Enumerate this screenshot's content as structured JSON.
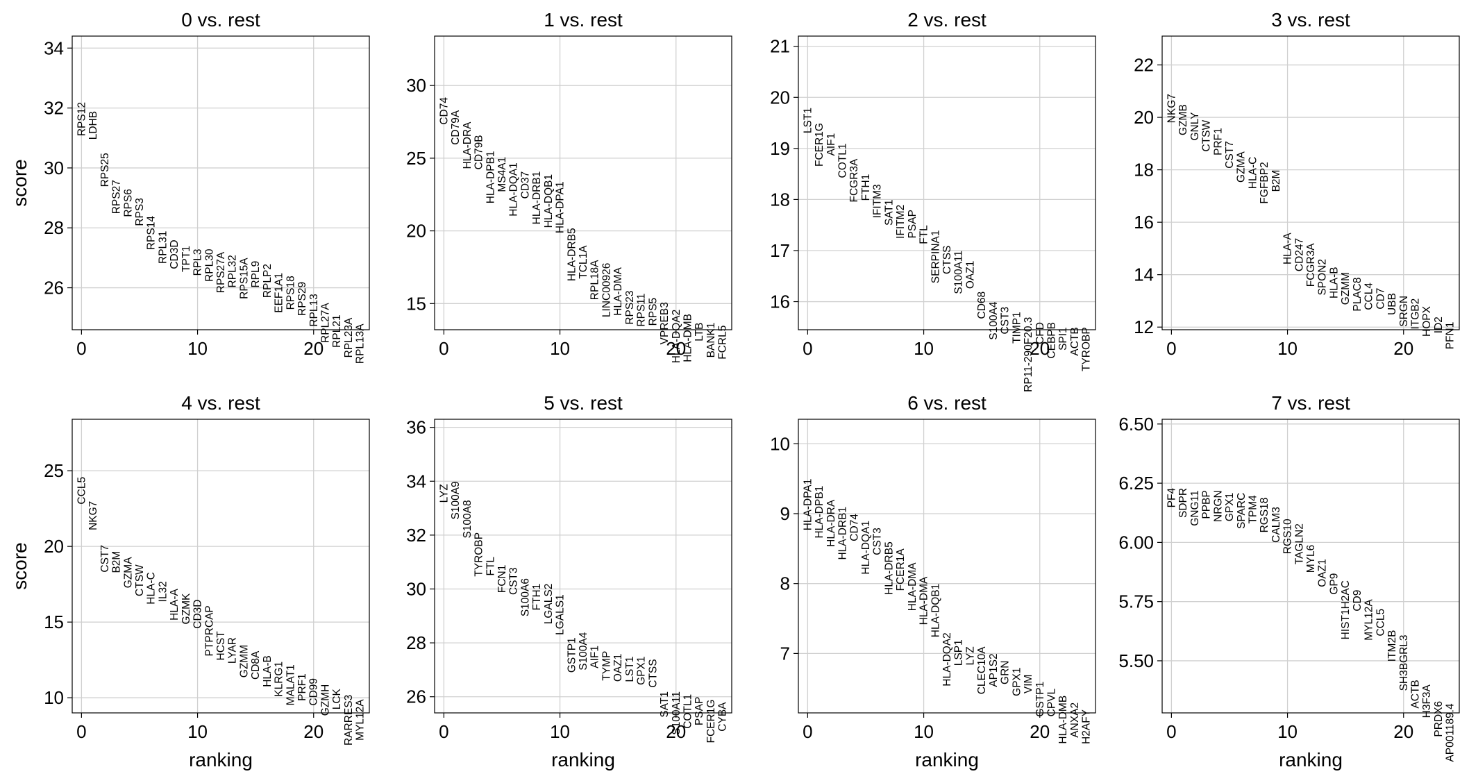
{
  "chart_data": [
    {
      "type": "scatter",
      "title": "0 vs. rest",
      "xlabel": "",
      "ylabel": "score",
      "xlim": [
        -0.8,
        24.8
      ],
      "ylim": [
        24.6,
        34.4
      ],
      "xticks": [
        0,
        10,
        20
      ],
      "yticks": [
        26,
        28,
        30,
        32,
        34
      ],
      "genes": [
        "RPS12",
        "LDHB",
        "RPS25",
        "RPS27",
        "RPS6",
        "RPS3",
        "RPS14",
        "RPL31",
        "CD3D",
        "TPT1",
        "RPL3",
        "RPL30",
        "RPS27A",
        "RPL32",
        "RPS15A",
        "RPL9",
        "RPLP2",
        "EEF1A1",
        "RPS18",
        "RPS29",
        "RPL13",
        "RPL27A",
        "RPL21",
        "RPL23A",
        "RPL13A"
      ],
      "scores": [
        32.2,
        31.9,
        30.5,
        29.6,
        29.3,
        29.0,
        28.4,
        27.9,
        27.6,
        27.4,
        27.3,
        27.3,
        27.2,
        27.1,
        27.0,
        26.9,
        26.8,
        26.5,
        26.4,
        26.2,
        25.8,
        25.5,
        25.1,
        25.0,
        24.8
      ]
    },
    {
      "type": "scatter",
      "title": "1 vs. rest",
      "xlabel": "",
      "ylabel": "",
      "xlim": [
        -0.8,
        24.8
      ],
      "ylim": [
        13.2,
        33.4
      ],
      "xticks": [
        0,
        10,
        20
      ],
      "yticks": [
        15,
        20,
        25,
        30
      ],
      "genes": [
        "CD74",
        "CD79A",
        "HLA-DRA",
        "CD79B",
        "HLA-DPB1",
        "MS4A1",
        "HLA-DQA1",
        "CD37",
        "HLA-DRB1",
        "HLA-DQB1",
        "HLA-DPA1",
        "HLA-DRB5",
        "TCL1A",
        "RPL18A",
        "LINC00926",
        "HLA-DMA",
        "RPS23",
        "RPS11",
        "RPS5",
        "VPREB3",
        "HLA-DQA2",
        "HLA-DMB",
        "LTB",
        "BANK1",
        "FCRL5"
      ],
      "scores": [
        29.2,
        28.3,
        27.5,
        26.6,
        25.5,
        25.1,
        24.7,
        24.1,
        24.1,
        23.9,
        23.4,
        20.2,
        19.0,
        18.0,
        17.8,
        17.5,
        15.9,
        15.7,
        15.4,
        15.1,
        14.6,
        14.3,
        13.7,
        13.7,
        13.5
      ]
    },
    {
      "type": "scatter",
      "title": "2 vs. rest",
      "xlabel": "",
      "ylabel": "",
      "xlim": [
        -0.8,
        24.8
      ],
      "ylim": [
        15.45,
        21.2
      ],
      "xticks": [
        0,
        10,
        20
      ],
      "yticks": [
        16,
        17,
        18,
        19,
        20,
        21
      ],
      "genes": [
        "LST1",
        "FCER1G",
        "AIF1",
        "COTL1",
        "FCGR3A",
        "FTH1",
        "IFITM3",
        "SAT1",
        "IFITM2",
        "PSAP",
        "FTL",
        "SERPINA1",
        "CTSS",
        "S100A11",
        "OAZ1",
        "CD68",
        "S100A4",
        "CST3",
        "TIMP1",
        "RP11-290F20.3",
        "CFD",
        "CEBPB",
        "SPI1",
        "ACTB",
        "TYROBP"
      ],
      "scores": [
        19.8,
        19.5,
        19.3,
        19.1,
        18.8,
        18.5,
        18.3,
        18.0,
        17.9,
        17.8,
        17.5,
        17.4,
        17.1,
        17.0,
        16.8,
        16.2,
        16.0,
        15.9,
        15.8,
        15.7,
        15.6,
        15.6,
        15.5,
        15.5,
        15.5
      ]
    },
    {
      "type": "scatter",
      "title": "3 vs. rest",
      "xlabel": "",
      "ylabel": "",
      "xlim": [
        -0.8,
        24.8
      ],
      "ylim": [
        11.9,
        23.1
      ],
      "xticks": [
        0,
        10,
        20
      ],
      "yticks": [
        12,
        14,
        16,
        18,
        20,
        22
      ],
      "genes": [
        "NKG7",
        "GZMB",
        "GNLY",
        "CTSW",
        "PRF1",
        "CST7",
        "GZMA",
        "HLA-C",
        "FGFBP2",
        "B2M",
        "HLA-A",
        "CD247",
        "FCGR3A",
        "SPON2",
        "HLA-B",
        "GZMM",
        "PLAC8",
        "CCL4",
        "CD7",
        "UBB",
        "SRGN",
        "ITGB2",
        "HOPX",
        "ID2",
        "PFN1"
      ],
      "scores": [
        20.9,
        20.5,
        20.2,
        19.9,
        19.6,
        19.1,
        18.7,
        18.5,
        18.3,
        18.0,
        15.6,
        15.4,
        15.2,
        14.6,
        14.3,
        14.1,
        13.9,
        13.7,
        13.5,
        13.3,
        13.2,
        13.1,
        12.8,
        12.4,
        12.2
      ]
    },
    {
      "type": "scatter",
      "title": "4 vs. rest",
      "xlabel": "ranking",
      "ylabel": "score",
      "xlim": [
        -0.8,
        24.8
      ],
      "ylim": [
        9.0,
        28.4
      ],
      "xticks": [
        0,
        10,
        20
      ],
      "yticks": [
        10,
        15,
        20,
        25
      ],
      "genes": [
        "CCL5",
        "NKG7",
        "CST7",
        "B2M",
        "GZMA",
        "CTSW",
        "HLA-C",
        "IL32",
        "HLA-A",
        "GZMK",
        "CD3D",
        "PTPRCAP",
        "HCST",
        "LYAR",
        "GZMM",
        "CD8A",
        "HLA-B",
        "KLRG1",
        "MALAT1",
        "PRF1",
        "CD99",
        "GZMH",
        "LCK",
        "RARRES3",
        "MYL12A"
      ],
      "scores": [
        24.6,
        23.0,
        20.1,
        19.7,
        19.3,
        18.8,
        18.3,
        17.7,
        17.2,
        16.9,
        16.5,
        16.1,
        14.4,
        14.0,
        13.5,
        13.1,
        12.8,
        12.4,
        12.2,
        11.6,
        11.3,
        10.9,
        10.6,
        10.2,
        9.9
      ]
    },
    {
      "type": "scatter",
      "title": "5 vs. rest",
      "xlabel": "ranking",
      "ylabel": "",
      "xlim": [
        -0.8,
        24.8
      ],
      "ylim": [
        25.4,
        36.3
      ],
      "xticks": [
        0,
        10,
        20
      ],
      "yticks": [
        26,
        28,
        30,
        32,
        34,
        36
      ],
      "genes": [
        "LYZ",
        "S100A9",
        "S100A8",
        "TYROBP",
        "FTL",
        "FCN1",
        "CST3",
        "S100A6",
        "FTH1",
        "LGALS2",
        "LGALS1",
        "GSTP1",
        "S100A4",
        "AIF1",
        "TYMP",
        "OAZ1",
        "LST1",
        "GPX1",
        "CTSS",
        "SAT1",
        "S100A11",
        "COTL1",
        "PSAP",
        "FCER1G",
        "CYBA"
      ],
      "scores": [
        33.9,
        34.0,
        33.3,
        32.1,
        31.2,
        30.9,
        30.8,
        30.4,
        30.2,
        30.2,
        29.8,
        28.2,
        28.4,
        27.9,
        27.7,
        27.6,
        27.5,
        27.5,
        27.4,
        26.2,
        26.2,
        26.1,
        26.0,
        25.9,
        25.8
      ]
    },
    {
      "type": "scatter",
      "title": "6 vs. rest",
      "xlabel": "ranking",
      "ylabel": "",
      "xlim": [
        -0.8,
        24.8
      ],
      "ylim": [
        6.15,
        10.35
      ],
      "xticks": [
        0,
        10,
        20
      ],
      "yticks": [
        7,
        8,
        9,
        10
      ],
      "genes": [
        "HLA-DPA1",
        "HLA-DPB1",
        "HLA-DRA",
        "HLA-DRB1",
        "CD74",
        "HLA-DQA1",
        "CST3",
        "HLA-DRB5",
        "FCER1A",
        "HLA-DMA",
        "HLA-DMA",
        "HLA-DQB1",
        "HLA-DQA2",
        "LSP1",
        "LYZ",
        "CLEC10A",
        "AP1S2",
        "GRN",
        "GPX1",
        "VIM",
        "GSTP1",
        "CPVL",
        "HLA-DMB",
        "ANXA2",
        "H2AFY"
      ],
      "scores": [
        9.5,
        9.4,
        9.2,
        9.1,
        9.0,
        8.9,
        8.8,
        8.6,
        8.5,
        8.3,
        8.1,
        8.0,
        7.3,
        7.2,
        7.1,
        7.1,
        7.0,
        6.9,
        6.8,
        6.7,
        6.6,
        6.5,
        6.4,
        6.3,
        6.2
      ]
    },
    {
      "type": "scatter",
      "title": "7 vs. rest",
      "xlabel": "ranking",
      "ylabel": "",
      "xlim": [
        -0.8,
        24.8
      ],
      "ylim": [
        5.28,
        6.52
      ],
      "xticks": [
        0,
        10,
        20
      ],
      "yticks": [
        5.5,
        5.75,
        6.0,
        6.25,
        6.5
      ],
      "genes": [
        "PF4",
        "SDPR",
        "GNG11",
        "PPBP",
        "NRGN",
        "GPX1",
        "SPARC",
        "TPM4",
        "RGS18",
        "CALM3",
        "RGS10",
        "TAGLN2",
        "MYL6",
        "OAZ1",
        "GP9",
        "HIST1H2AC",
        "CD9",
        "MYL12A",
        "CCL5",
        "ITM2B",
        "SH3BGRL3",
        "ACTB",
        "H3F3A",
        "PRDX6",
        "AP001189.4"
      ],
      "scores": [
        6.23,
        6.23,
        6.22,
        6.22,
        6.22,
        6.21,
        6.21,
        6.2,
        6.19,
        6.15,
        6.1,
        6.08,
        5.99,
        5.93,
        5.87,
        5.84,
        5.8,
        5.76,
        5.72,
        5.63,
        5.61,
        5.42,
        5.4,
        5.33,
        5.32
      ]
    }
  ]
}
